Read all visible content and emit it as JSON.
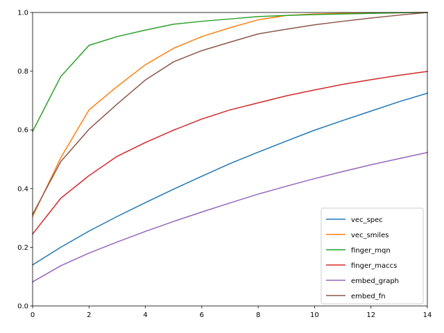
{
  "chart_data": {
    "type": "line",
    "title": "",
    "xlabel": "",
    "ylabel": "",
    "xlim": [
      0,
      14
    ],
    "ylim": [
      0,
      1.0
    ],
    "x_ticks": [
      0,
      2,
      4,
      6,
      8,
      10,
      12,
      14
    ],
    "y_ticks": [
      0.0,
      0.2,
      0.4,
      0.6,
      0.8,
      1.0
    ],
    "x_tick_labels": [
      "0",
      "2",
      "4",
      "6",
      "8",
      "10",
      "12",
      "14"
    ],
    "y_tick_labels": [
      "0.0",
      "0.2",
      "0.4",
      "0.6",
      "0.8",
      "1.0"
    ],
    "grid": false,
    "legend_position": "lower-right",
    "x": [
      0,
      1,
      2,
      3,
      4,
      5,
      6,
      7,
      8,
      9,
      10,
      11,
      12,
      13,
      14
    ],
    "series": [
      {
        "name": "vec_spec",
        "color": "#1f77b4",
        "values": [
          0.14,
          0.2,
          0.255,
          0.305,
          0.352,
          0.398,
          0.442,
          0.485,
          0.524,
          0.562,
          0.599,
          0.632,
          0.664,
          0.696,
          0.725
        ]
      },
      {
        "name": "vec_smiles",
        "color": "#ff7f0e",
        "values": [
          0.305,
          0.505,
          0.668,
          0.748,
          0.822,
          0.878,
          0.918,
          0.948,
          0.975,
          0.99,
          0.995,
          0.997,
          0.998,
          0.999,
          1.0
        ]
      },
      {
        "name": "finger_mqn",
        "color": "#2ca02c",
        "values": [
          0.595,
          0.782,
          0.888,
          0.918,
          0.94,
          0.96,
          0.97,
          0.978,
          0.986,
          0.99,
          0.993,
          0.995,
          0.997,
          0.999,
          1.0
        ]
      },
      {
        "name": "finger_maccs",
        "color": "#d62728",
        "values": [
          0.245,
          0.367,
          0.444,
          0.51,
          0.557,
          0.599,
          0.637,
          0.668,
          0.692,
          0.716,
          0.736,
          0.755,
          0.771,
          0.786,
          0.799
        ]
      },
      {
        "name": "embed_graph",
        "color": "#9467bd",
        "values": [
          0.082,
          0.137,
          0.18,
          0.218,
          0.254,
          0.288,
          0.32,
          0.351,
          0.381,
          0.408,
          0.434,
          0.458,
          0.481,
          0.502,
          0.523
        ]
      },
      {
        "name": "embed_fn",
        "color": "#8c564b",
        "values": [
          0.312,
          0.492,
          0.602,
          0.688,
          0.77,
          0.832,
          0.87,
          0.899,
          0.927,
          0.943,
          0.958,
          0.97,
          0.981,
          0.991,
          1.0
        ]
      }
    ]
  }
}
